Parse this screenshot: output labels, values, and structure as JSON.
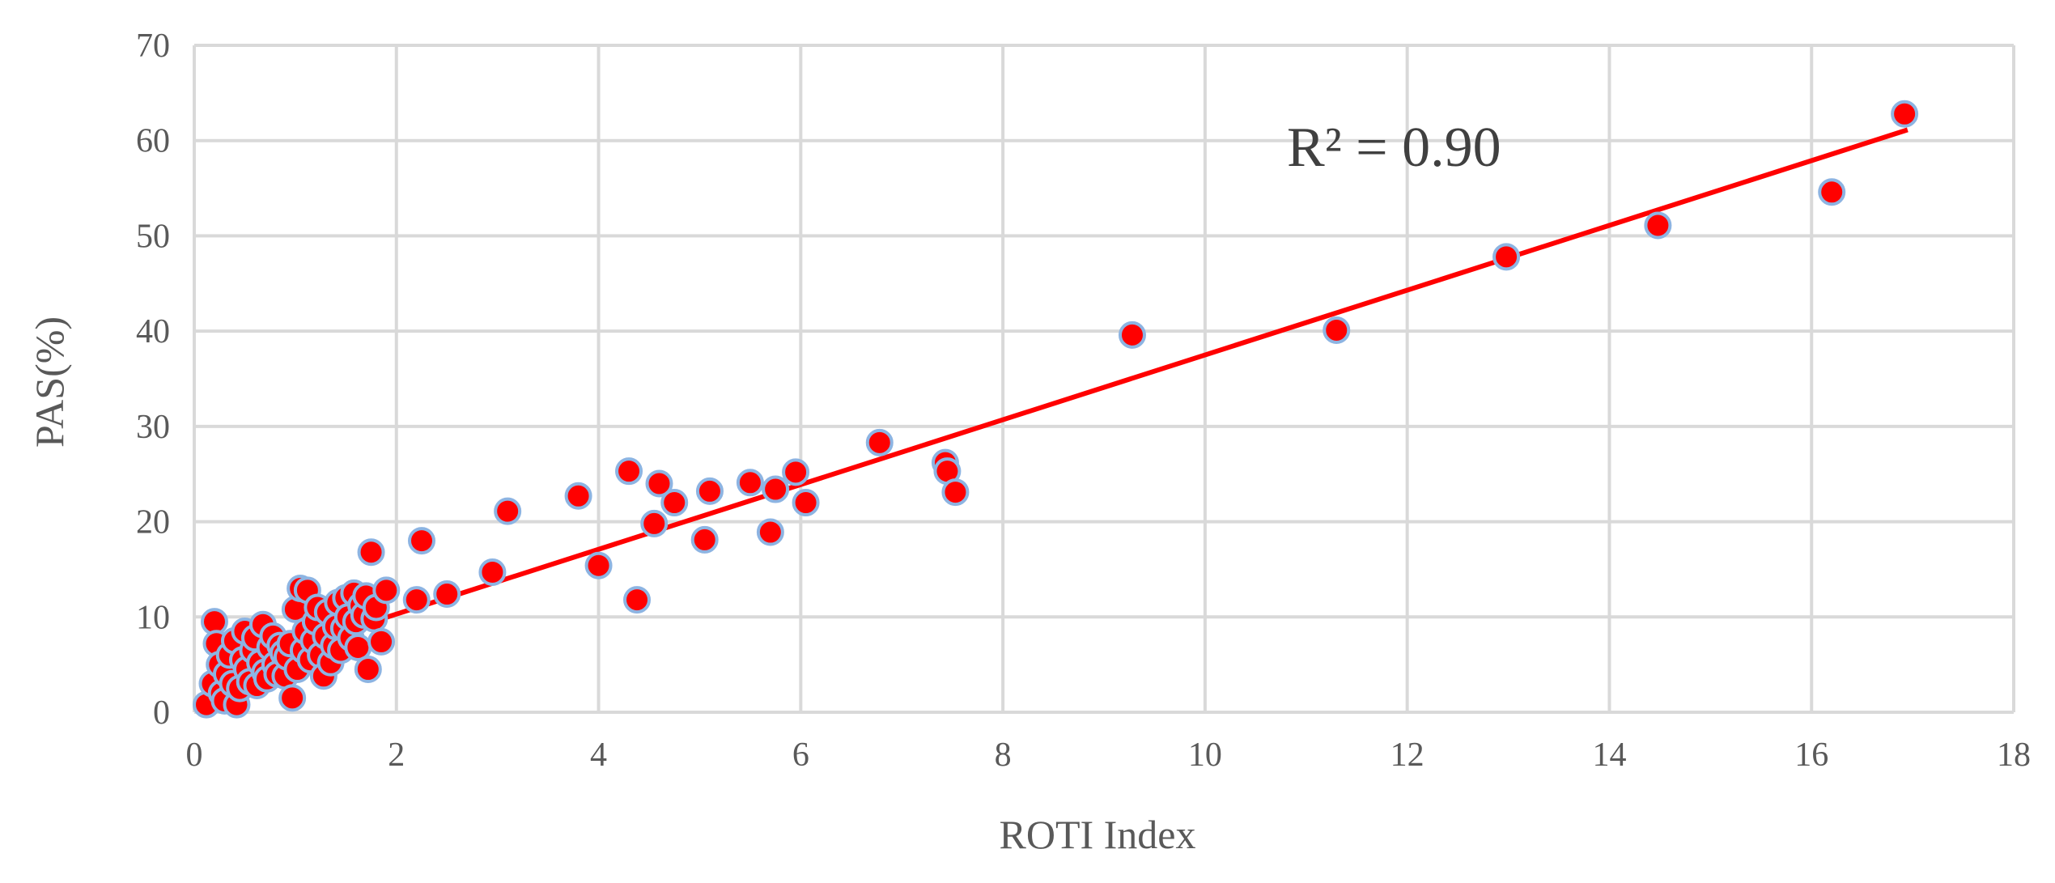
{
  "chart_data": {
    "type": "scatter",
    "title": "",
    "xlabel": "ROTI Index",
    "ylabel": "PAS(%)",
    "xlim": [
      0,
      18
    ],
    "ylim": [
      0,
      70
    ],
    "xticks": [
      0,
      2,
      4,
      6,
      8,
      10,
      12,
      14,
      16,
      18
    ],
    "yticks": [
      0,
      10,
      20,
      30,
      40,
      50,
      60,
      70
    ],
    "grid": true,
    "legend": "none",
    "colors": {
      "marker_fill": "#ff0000",
      "marker_edge": "#8db4e2",
      "trendline": "#ff0000",
      "grid": "#d9d9d9"
    },
    "annotation": "R² = 0.90",
    "trendline": {
      "type": "linear",
      "slope": 3.4,
      "intercept": 3.5
    },
    "points": [
      [
        0.12,
        0.8
      ],
      [
        0.18,
        3.0
      ],
      [
        0.2,
        9.5
      ],
      [
        0.22,
        7.2
      ],
      [
        0.25,
        5.0
      ],
      [
        0.27,
        2.0
      ],
      [
        0.3,
        1.2
      ],
      [
        0.32,
        4.0
      ],
      [
        0.35,
        6.0
      ],
      [
        0.38,
        3.0
      ],
      [
        0.4,
        7.5
      ],
      [
        0.42,
        0.8
      ],
      [
        0.45,
        2.5
      ],
      [
        0.48,
        5.5
      ],
      [
        0.5,
        8.5
      ],
      [
        0.52,
        4.5
      ],
      [
        0.55,
        3.2
      ],
      [
        0.58,
        6.5
      ],
      [
        0.6,
        7.8
      ],
      [
        0.62,
        2.8
      ],
      [
        0.65,
        5.2
      ],
      [
        0.68,
        9.2
      ],
      [
        0.7,
        4.2
      ],
      [
        0.72,
        3.5
      ],
      [
        0.75,
        6.8
      ],
      [
        0.78,
        8.0
      ],
      [
        0.8,
        5.0
      ],
      [
        0.82,
        4.0
      ],
      [
        0.85,
        7.0
      ],
      [
        0.88,
        6.2
      ],
      [
        0.9,
        3.8
      ],
      [
        0.92,
        5.8
      ],
      [
        0.95,
        7.2
      ],
      [
        0.97,
        1.5
      ],
      [
        1.0,
        10.8
      ],
      [
        1.02,
        4.5
      ],
      [
        1.05,
        13.0
      ],
      [
        1.08,
        6.5
      ],
      [
        1.1,
        8.5
      ],
      [
        1.12,
        12.8
      ],
      [
        1.15,
        5.5
      ],
      [
        1.18,
        7.5
      ],
      [
        1.2,
        9.5
      ],
      [
        1.22,
        11.0
      ],
      [
        1.25,
        6.0
      ],
      [
        1.28,
        3.8
      ],
      [
        1.3,
        8.0
      ],
      [
        1.32,
        10.5
      ],
      [
        1.35,
        5.2
      ],
      [
        1.38,
        7.0
      ],
      [
        1.4,
        9.0
      ],
      [
        1.42,
        11.5
      ],
      [
        1.45,
        6.5
      ],
      [
        1.48,
        8.8
      ],
      [
        1.5,
        12.0
      ],
      [
        1.52,
        10.0
      ],
      [
        1.55,
        7.8
      ],
      [
        1.58,
        12.5
      ],
      [
        1.6,
        9.5
      ],
      [
        1.62,
        6.8
      ],
      [
        1.65,
        11.2
      ],
      [
        1.68,
        10.2
      ],
      [
        1.7,
        12.2
      ],
      [
        1.72,
        4.5
      ],
      [
        1.75,
        16.8
      ],
      [
        1.78,
        9.8
      ],
      [
        1.8,
        11.0
      ],
      [
        1.85,
        7.4
      ],
      [
        1.9,
        12.8
      ],
      [
        2.2,
        11.8
      ],
      [
        2.25,
        18.0
      ],
      [
        2.5,
        12.4
      ],
      [
        2.95,
        14.7
      ],
      [
        3.1,
        21.1
      ],
      [
        3.8,
        22.7
      ],
      [
        4.0,
        15.4
      ],
      [
        4.3,
        25.3
      ],
      [
        4.38,
        11.8
      ],
      [
        4.55,
        19.8
      ],
      [
        4.6,
        24.0
      ],
      [
        4.75,
        22.0
      ],
      [
        5.05,
        18.1
      ],
      [
        5.1,
        23.2
      ],
      [
        5.5,
        24.1
      ],
      [
        5.7,
        18.9
      ],
      [
        5.75,
        23.4
      ],
      [
        5.95,
        25.2
      ],
      [
        6.05,
        22.0
      ],
      [
        6.78,
        28.3
      ],
      [
        7.43,
        26.2
      ],
      [
        7.45,
        25.3
      ],
      [
        7.53,
        23.1
      ],
      [
        9.28,
        39.6
      ],
      [
        11.3,
        40.1
      ],
      [
        12.98,
        47.8
      ],
      [
        14.48,
        51.1
      ],
      [
        16.2,
        54.6
      ],
      [
        16.92,
        62.8
      ]
    ]
  }
}
